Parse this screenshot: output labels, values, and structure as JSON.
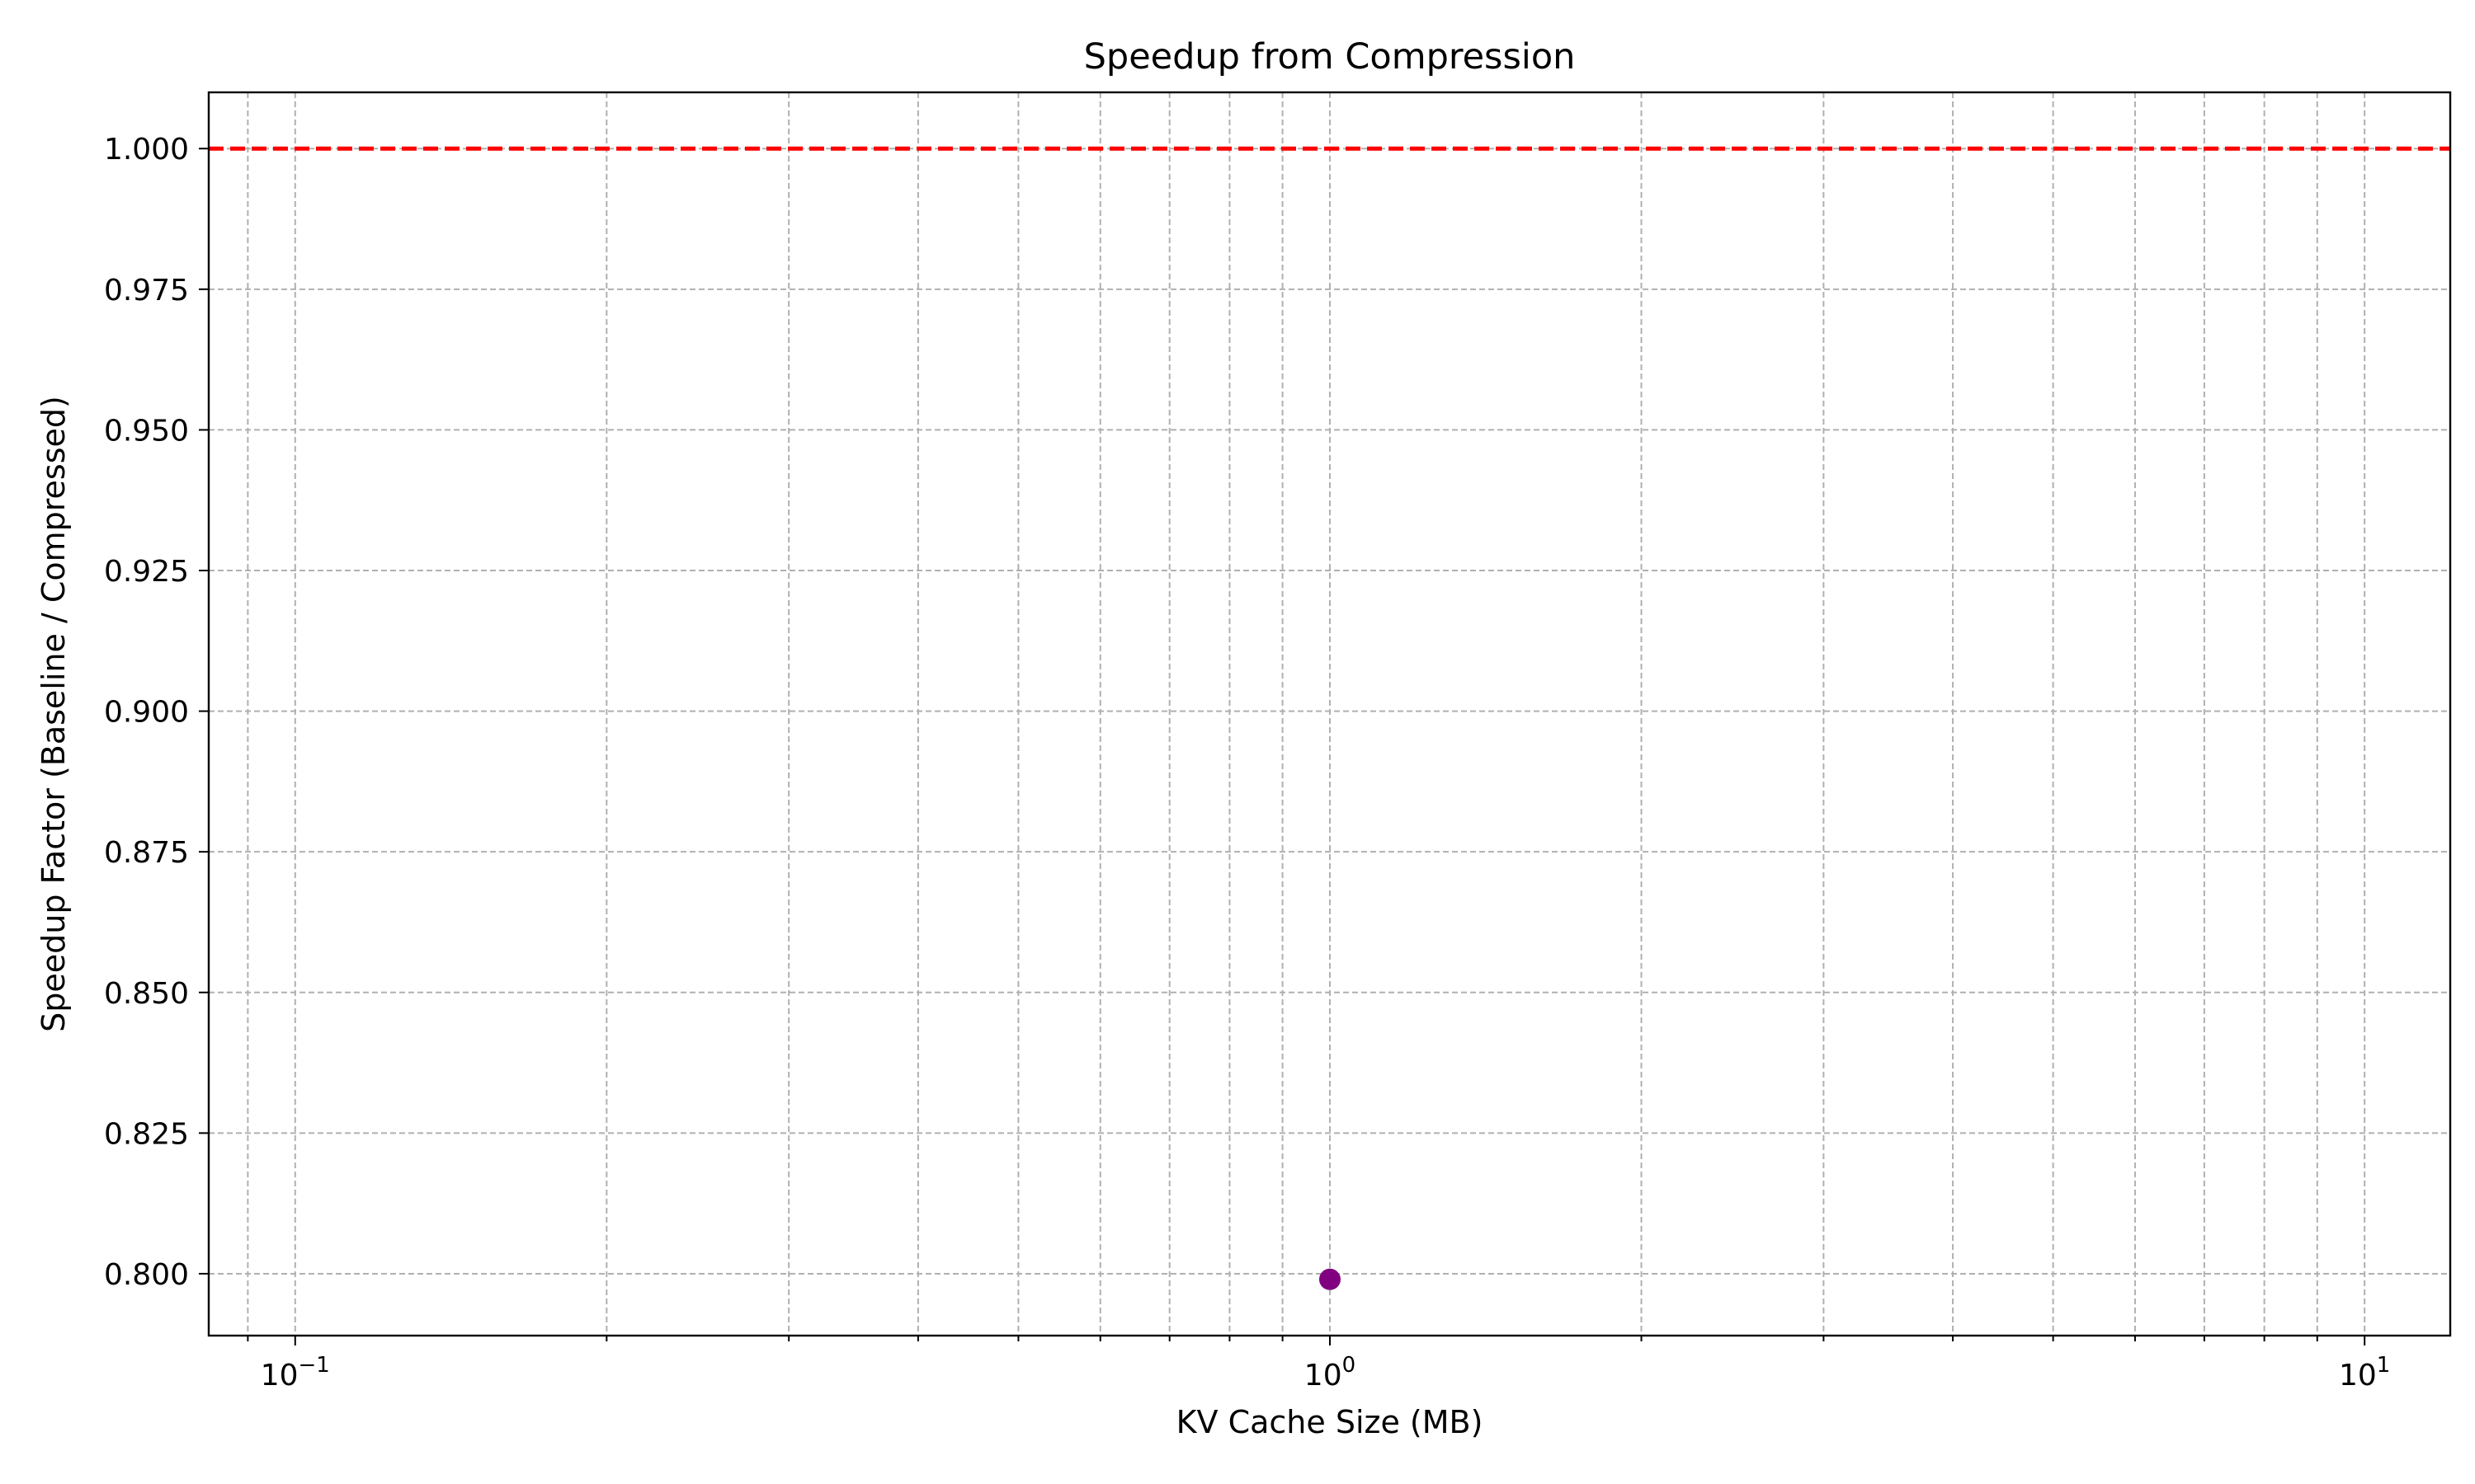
{
  "chart_data": {
    "type": "scatter",
    "title": "Speedup from Compression",
    "xlabel": "KV Cache Size (MB)",
    "ylabel": "Speedup Factor (Baseline / Compressed)",
    "xscale": "log",
    "xlim": [
      0.0825,
      12.1
    ],
    "ylim": [
      0.789,
      1.01
    ],
    "x_ticks": [
      {
        "value": 0.1,
        "base": "10",
        "exp": "−1"
      },
      {
        "value": 1,
        "base": "10",
        "exp": "0"
      },
      {
        "value": 10,
        "base": "10",
        "exp": "1"
      }
    ],
    "y_ticks": [
      {
        "value": 0.8,
        "label": "0.800"
      },
      {
        "value": 0.825,
        "label": "0.825"
      },
      {
        "value": 0.85,
        "label": "0.850"
      },
      {
        "value": 0.875,
        "label": "0.875"
      },
      {
        "value": 0.9,
        "label": "0.900"
      },
      {
        "value": 0.925,
        "label": "0.925"
      },
      {
        "value": 0.95,
        "label": "0.950"
      },
      {
        "value": 0.975,
        "label": "0.975"
      },
      {
        "value": 1.0,
        "label": "1.000"
      }
    ],
    "grid": true,
    "grid_style": "dashed",
    "series": [
      {
        "x": [
          1.0
        ],
        "y": [
          0.799
        ],
        "color": "#800080",
        "marker": "circle"
      }
    ],
    "reference_lines": [
      {
        "y": 1.0,
        "color": "#ff0000",
        "style": "dashed"
      }
    ]
  }
}
